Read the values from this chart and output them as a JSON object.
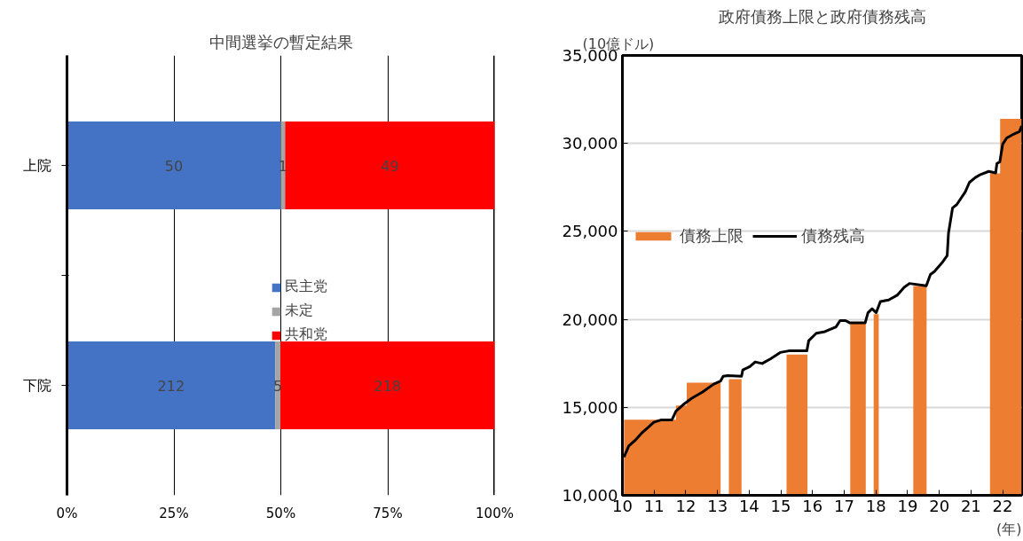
{
  "chart_data": [
    {
      "type": "bar",
      "title": "中間選挙の暫定結果",
      "orientation": "horizontal",
      "stacked": true,
      "categories": [
        "上院",
        "下院"
      ],
      "series": [
        {
          "name": "民主党",
          "color": "#4472c4",
          "values": [
            50,
            48.7
          ]
        },
        {
          "name": "未定",
          "color": "#a5a5a5",
          "values": [
            1,
            1.2
          ]
        },
        {
          "name": "共和党",
          "color": "#ff0000",
          "values": [
            49,
            50.1
          ]
        }
      ],
      "annotations": [
        "50",
        "1",
        "49",
        "212",
        "5",
        "218"
      ],
      "xlim": [
        0,
        100
      ],
      "xticks": [
        {
          "value": 0,
          "label": "0%"
        },
        {
          "value": 25,
          "label": "25%"
        },
        {
          "value": 50,
          "label": "50%"
        },
        {
          "value": 75,
          "label": "75%"
        },
        {
          "value": 100,
          "label": "100%"
        }
      ],
      "grid": "x",
      "legend": "center"
    },
    {
      "type": "line",
      "title": "政府債務上限と政府債務残高",
      "ylabel": "(10億ドル)",
      "xlabel": "(年)",
      "series": [
        {
          "name": "債務上限",
          "type": "area",
          "color": "#ed7d31",
          "x": [
            10.05,
            11.69,
            11.69,
            12.03,
            12.03,
            13.1,
            13.2,
            13.36,
            13.76,
            14.5,
            15.18,
            15.84,
            16.5,
            17.19,
            17.68,
            17.8,
            17.93,
            18.09,
            18.6,
            19.18,
            19.6,
            20.5,
            21.6,
            21.92,
            21.92,
            22.6
          ],
          "values": [
            14300,
            14300,
            15100,
            15100,
            16400,
            16400,
            null,
            16600,
            16600,
            null,
            18000,
            18000,
            null,
            19800,
            19800,
            null,
            20300,
            20300,
            null,
            21900,
            21900,
            null,
            28300,
            28300,
            31400,
            31400
          ]
        },
        {
          "name": "債務残高",
          "type": "line",
          "color": "#000000",
          "x": [
            10.05,
            10.2,
            10.42,
            10.6,
            10.82,
            10.99,
            11.21,
            11.56,
            11.69,
            11.91,
            12.18,
            12.53,
            12.88,
            13.1,
            13.18,
            13.32,
            13.76,
            13.8,
            14.02,
            14.19,
            14.41,
            14.68,
            14.98,
            15.25,
            15.82,
            15.88,
            16.12,
            16.39,
            16.74,
            16.87,
            17.04,
            17.18,
            17.66,
            17.75,
            17.88,
            18.01,
            18.14,
            18.4,
            18.67,
            18.89,
            19.06,
            19.59,
            19.72,
            19.85,
            20.11,
            20.25,
            20.29,
            20.42,
            20.55,
            20.82,
            20.95,
            21.13,
            21.3,
            21.56,
            21.78,
            21.82,
            21.91,
            22.0,
            22.13,
            22.31,
            22.53,
            22.6
          ],
          "values": [
            12170,
            12800,
            13160,
            13520,
            13880,
            14150,
            14280,
            14280,
            14780,
            15140,
            15510,
            15870,
            16320,
            16500,
            16770,
            16800,
            16770,
            17130,
            17310,
            17580,
            17490,
            17760,
            18120,
            18210,
            18210,
            18790,
            19210,
            19300,
            19570,
            19930,
            19930,
            19800,
            19800,
            20380,
            20600,
            20380,
            21010,
            21100,
            21370,
            21820,
            22040,
            21910,
            22550,
            22730,
            23270,
            23630,
            24890,
            26340,
            26520,
            27240,
            27780,
            28050,
            28230,
            28410,
            28320,
            28860,
            28950,
            29950,
            30310,
            30490,
            30670,
            30990
          ]
        }
      ],
      "xlim": [
        10,
        22.6
      ],
      "xticks": [
        10,
        11,
        12,
        13,
        14,
        15,
        16,
        17,
        18,
        19,
        20,
        21,
        22
      ],
      "ylim": [
        10000,
        35000
      ],
      "yticks": [
        {
          "value": 10000,
          "label": "10,000"
        },
        {
          "value": 15000,
          "label": "15,000"
        },
        {
          "value": 20000,
          "label": "20,000"
        },
        {
          "value": 25000,
          "label": "25,000"
        },
        {
          "value": 30000,
          "label": "30,000"
        },
        {
          "value": 35000,
          "label": "35,000"
        }
      ],
      "grid": "y",
      "legend": "top left"
    }
  ]
}
